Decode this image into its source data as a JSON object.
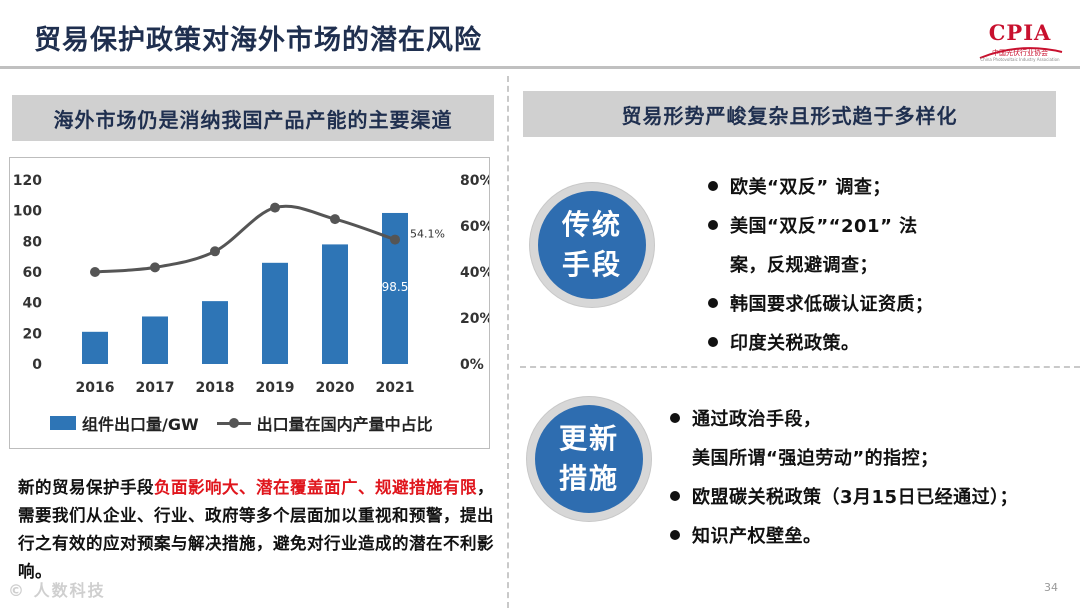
{
  "header": {
    "title": "贸易保护政策对海外市场的潜在风险",
    "logo_text": "CPIA",
    "logo_subtitle": "中国光伏行业协会",
    "logo_subtitle_en": "China Photovoltaic Industry Association"
  },
  "left": {
    "banner": "海外市场仍是消纳我国产品产能的主要渠道",
    "paragraph": {
      "part1": "新的贸易保护手段",
      "part2_red": "负面影响大、潜在覆盖面广、规避措施有限",
      "part3": "，需要我们从企业、行业、政府等多个层面加以重视和预警，提出行之有效的应对预案与解决措施，避免对行业造成的潜在不利影响。"
    }
  },
  "chart_data": {
    "type": "bar",
    "categories": [
      "2016",
      "2017",
      "2018",
      "2019",
      "2020",
      "2021"
    ],
    "series": [
      {
        "name": "组件出口量/GW",
        "kind": "bar",
        "axis": "left",
        "values": [
          21,
          31,
          41,
          66,
          78,
          98.5
        ],
        "color": "#2e75b6"
      },
      {
        "name": "出口量在国内产量中占比",
        "kind": "line",
        "axis": "right",
        "values": [
          40,
          42,
          49,
          68,
          63,
          54.1
        ],
        "color": "#555555"
      }
    ],
    "y_left": {
      "min": 0,
      "max": 120,
      "ticks": [
        "0",
        "20",
        "40",
        "60",
        "80",
        "100",
        "120"
      ]
    },
    "y_right": {
      "min": 0,
      "max": 80,
      "ticks": [
        "0%",
        "20%",
        "40%",
        "60%",
        "80%"
      ]
    },
    "labels": {
      "bar_2021": "98.5",
      "line_2021": "54.1%"
    },
    "legend": {
      "bar": "组件出口量/GW",
      "line": "出口量在国内产量中占比"
    }
  },
  "right": {
    "banner": "贸易形势严峻复杂且形式趋于多样化",
    "traditional": {
      "circle_line1": "传统",
      "circle_line2": "手段",
      "items": [
        "欧美“双反” 调查；",
        "美国“双反”“201” 法",
        "案，反规避调查；",
        "韩国要求低碳认证资质；",
        "印度关税政策。"
      ]
    },
    "new_measures": {
      "circle_line1": "更新",
      "circle_line2": "措施",
      "items": [
        "通过政治手段，",
        "美国所谓“强迫劳动”的指控；",
        "欧盟碳关税政策（3月15日已经通过）；",
        "知识产权壁垒。"
      ]
    }
  },
  "footer": {
    "watermark": "© 人数科技",
    "page_number": "34"
  }
}
